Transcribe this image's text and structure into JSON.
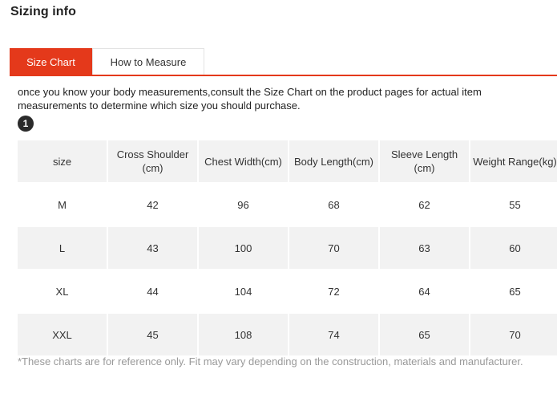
{
  "page": {
    "title": "Sizing info"
  },
  "tabs": [
    {
      "label": "Size Chart",
      "active": true
    },
    {
      "label": "How to Measure",
      "active": false
    }
  ],
  "intro_text": "once you know your body measurements,consult the Size Chart on the product pages for actual item measurements to determine which size you should purchase.",
  "step_badge": "1",
  "colors": {
    "accent": "#e4391b",
    "header_bg": "#f2f2f2",
    "footnote": "#999999"
  },
  "table": {
    "headers": [
      "size",
      "Cross Shoulder (cm)",
      "Chest Width(cm)",
      "Body Length(cm)",
      "Sleeve Length (cm)",
      "Weight Range(kg)"
    ],
    "rows": [
      [
        "M",
        "42",
        "96",
        "68",
        "62",
        "55"
      ],
      [
        "L",
        "43",
        "100",
        "70",
        "63",
        "60"
      ],
      [
        "XL",
        "44",
        "104",
        "72",
        "64",
        "65"
      ],
      [
        "XXL",
        "45",
        "108",
        "74",
        "65",
        "70"
      ]
    ]
  },
  "footnote": "*These charts are for reference only. Fit may vary depending on the construction, materials and manufacturer."
}
